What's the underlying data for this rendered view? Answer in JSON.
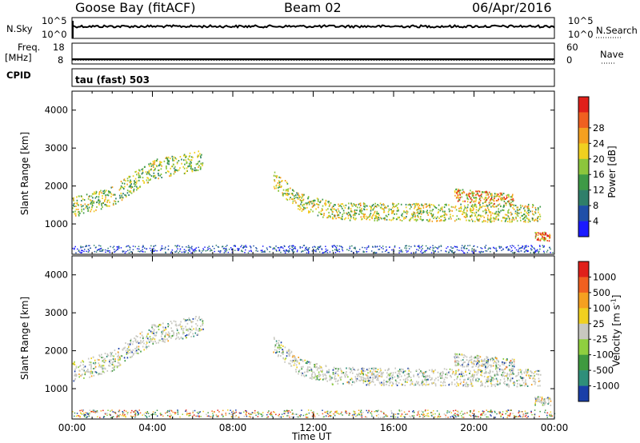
{
  "header": {
    "station": "Goose Bay (fitACF)",
    "beam": "Beam 02",
    "date": "06/Apr/2016"
  },
  "side_labels": {
    "nsky": "N.Sky",
    "freq": "Freq.",
    "freq_unit": "[MHz]",
    "cpid": "CPID",
    "nsearch": "N.Search",
    "nave": "Nave",
    "cpid_value": "tau (fast) 503"
  },
  "strip_ticks": {
    "nsky_top": "10^5",
    "nsky_bottom": "10^0",
    "nsearch_top": "10^5",
    "nsearch_bottom": "10^0",
    "freq_top": "18",
    "freq_bottom": "8",
    "nave_top": "60",
    "nave_bottom": "0"
  },
  "chart_data": [
    {
      "type": "heatmap",
      "name": "power",
      "ylabel": "Slant Range [km]",
      "ylim": [
        200,
        4500
      ],
      "y_ticks": [
        1000,
        2000,
        3000,
        4000
      ],
      "colorbar_label": "Power [dB]",
      "colorbar_ticks": [
        "4",
        "8",
        "12",
        "16",
        "20",
        "24",
        "28"
      ],
      "colors": [
        "#1a1aff",
        "#1f4fa8",
        "#2f7f6a",
        "#3e9a46",
        "#8cc63c",
        "#f0d020",
        "#f5a020",
        "#f06020",
        "#e0201a"
      ],
      "bands": [
        {
          "x": [
            0.0,
            2.0,
            4.0,
            6.5
          ],
          "y": [
            1450,
            1750,
            2450,
            2700
          ],
          "width": 260,
          "intensity": 0.55
        },
        {
          "x": [
            10.0,
            11.3,
            13.0,
            21.0,
            23.3
          ],
          "y": [
            2200,
            1600,
            1350,
            1300,
            1300
          ],
          "width": 230,
          "intensity": 0.6
        },
        {
          "x": [
            19.0,
            22.0
          ],
          "y": [
            1780,
            1650
          ],
          "width": 160,
          "intensity": 0.75
        },
        {
          "x": [
            23.0,
            23.8
          ],
          "y": [
            700,
            680
          ],
          "width": 110,
          "intensity": 0.9
        }
      ]
    },
    {
      "type": "heatmap",
      "name": "velocity",
      "ylabel": "Slant Range [km]",
      "ylim": [
        200,
        4500
      ],
      "y_ticks": [
        1000,
        2000,
        3000,
        4000
      ],
      "colorbar_label": "Velocity [m s^-1]",
      "colorbar_ticks": [
        "1000",
        "500",
        "100",
        "25",
        "-25",
        "-100",
        "-500",
        "-1000"
      ],
      "colors": [
        "#1a3fa8",
        "#2f8f7a",
        "#3f9a3f",
        "#8fcf3f",
        "#c8c8c0",
        "#f0d020",
        "#f5a020",
        "#f06020",
        "#e0201a"
      ],
      "bands": [
        {
          "x": [
            0.0,
            2.0,
            4.0,
            6.5
          ],
          "y": [
            1450,
            1750,
            2450,
            2700
          ],
          "width": 260,
          "intensity": 0.5
        },
        {
          "x": [
            10.0,
            11.3,
            13.0,
            21.0,
            23.3
          ],
          "y": [
            2200,
            1600,
            1350,
            1300,
            1300
          ],
          "width": 230,
          "intensity": 0.5
        },
        {
          "x": [
            19.0,
            22.0
          ],
          "y": [
            1780,
            1650
          ],
          "width": 160,
          "intensity": 0.8
        },
        {
          "x": [
            23.0,
            23.8
          ],
          "y": [
            700,
            680
          ],
          "width": 110,
          "intensity": 0.85
        }
      ]
    }
  ],
  "time_axis": {
    "label": "Time UT",
    "ticks": [
      "00:00",
      "04:00",
      "08:00",
      "12:00",
      "16:00",
      "20:00",
      "00:00"
    ],
    "range_hours": [
      0,
      24
    ]
  }
}
